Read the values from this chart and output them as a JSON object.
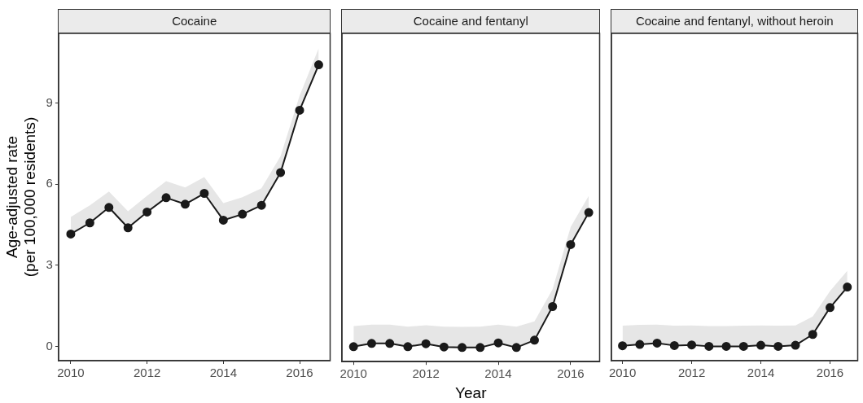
{
  "chart_data": [
    {
      "type": "line",
      "title": "Cocaine",
      "ylabel": "Age-adjusted rate\n(per 100,000 residents)",
      "x": [
        2010,
        2010.5,
        2011,
        2011.5,
        2012,
        2012.5,
        2013,
        2013.5,
        2014,
        2014.5,
        2015,
        2015.5,
        2016,
        2016.5
      ],
      "xlim": [
        2009.68,
        2016.8
      ],
      "xticks": [
        2010,
        2012,
        2014,
        2016
      ],
      "ylim": [
        -0.52,
        11.57
      ],
      "yticks": [
        0,
        3,
        6,
        9
      ],
      "grid": false,
      "legend": false,
      "marker": "circle",
      "line_style": "solid",
      "series": [
        {
          "color": "#1a1a1a",
          "values": [
            4.16,
            4.57,
            5.14,
            4.39,
            4.97,
            5.5,
            5.26,
            5.66,
            4.67,
            4.89,
            5.22,
            6.43,
            8.73,
            10.41
          ],
          "lower": [
            4.16,
            4.57,
            5.14,
            4.39,
            4.97,
            5.5,
            5.26,
            5.66,
            4.67,
            4.89,
            5.22,
            6.43,
            8.73,
            10.41
          ],
          "upper": [
            4.79,
            5.22,
            5.73,
            5.0,
            5.57,
            6.11,
            5.88,
            6.26,
            5.3,
            5.52,
            5.85,
            7.04,
            9.27,
            11.02
          ]
        }
      ]
    },
    {
      "type": "line",
      "title": "Cocaine and fentanyl",
      "xlabel": "Year",
      "x": [
        2010,
        2010.5,
        2011,
        2011.5,
        2012,
        2012.5,
        2013,
        2013.5,
        2014,
        2014.5,
        2015,
        2015.5,
        2016,
        2016.5
      ],
      "xlim": [
        2009.68,
        2016.8
      ],
      "xticks": [
        2010,
        2012,
        2014,
        2016
      ],
      "ylim": [
        -0.52,
        11.57
      ],
      "yticks": [
        0,
        3,
        6,
        9
      ],
      "tick_labels": "x",
      "grid": false,
      "legend": false,
      "marker": "circle",
      "line_style": "solid",
      "series": [
        {
          "color": "#1a1a1a",
          "values": [
            0.03,
            0.15,
            0.15,
            0.03,
            0.14,
            0.02,
            0,
            0,
            0.17,
            0,
            0.27,
            1.51,
            3.79,
            4.97
          ],
          "lower": [
            0.03,
            0.15,
            0.15,
            0.03,
            0.14,
            0.02,
            0,
            0,
            0.17,
            0,
            0.27,
            1.51,
            3.79,
            4.97
          ],
          "upper": [
            0.79,
            0.84,
            0.84,
            0.77,
            0.82,
            0.77,
            0.76,
            0.77,
            0.84,
            0.77,
            0.96,
            2.15,
            4.44,
            5.59
          ]
        }
      ]
    },
    {
      "type": "line",
      "title": "Cocaine and fentanyl, without heroin",
      "x": [
        2010,
        2010.5,
        2011,
        2011.5,
        2012,
        2012.5,
        2013,
        2013.5,
        2014,
        2014.5,
        2015,
        2015.5,
        2016,
        2016.5
      ],
      "xlim": [
        2009.68,
        2016.8
      ],
      "xticks": [
        2010,
        2012,
        2014,
        2016
      ],
      "ylim": [
        -0.52,
        11.57
      ],
      "yticks": [
        0,
        3,
        6,
        9
      ],
      "tick_labels": "x",
      "grid": false,
      "legend": false,
      "marker": "circle",
      "line_style": "solid",
      "series": [
        {
          "color": "#1a1a1a",
          "values": [
            0.03,
            0.08,
            0.13,
            0.04,
            0.06,
            0.01,
            0.01,
            0.01,
            0.05,
            0.01,
            0.05,
            0.45,
            1.44,
            2.2
          ],
          "lower": [
            0.03,
            0.08,
            0.13,
            0.04,
            0.06,
            0.01,
            0.01,
            0.01,
            0.05,
            0.01,
            0.05,
            0.45,
            1.44,
            2.2
          ],
          "upper": [
            0.77,
            0.8,
            0.81,
            0.77,
            0.78,
            0.76,
            0.76,
            0.77,
            0.78,
            0.77,
            0.78,
            1.11,
            2.05,
            2.8
          ]
        }
      ]
    }
  ]
}
